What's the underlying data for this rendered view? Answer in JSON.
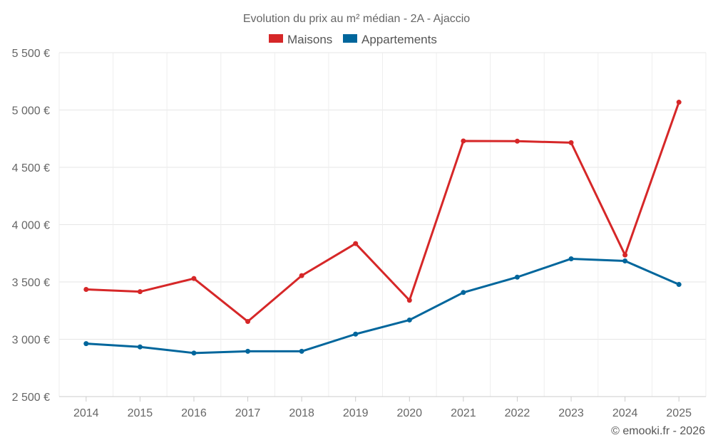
{
  "chart_data": {
    "type": "line",
    "title": "Evolution du prix au m² médian - 2A - Ajaccio",
    "categories": [
      "2014",
      "2015",
      "2016",
      "2017",
      "2018",
      "2019",
      "2020",
      "2021",
      "2022",
      "2023",
      "2024",
      "2025"
    ],
    "series": [
      {
        "name": "Maisons",
        "color": "#d62728",
        "values": [
          3435,
          3415,
          3530,
          3155,
          3555,
          3835,
          3340,
          4730,
          4728,
          4715,
          3735,
          5068
        ]
      },
      {
        "name": "Appartements",
        "color": "#00669c",
        "values": [
          2962,
          2933,
          2880,
          2895,
          2895,
          3045,
          3168,
          3408,
          3542,
          3702,
          3683,
          3478
        ]
      }
    ],
    "ylim": [
      2500,
      5500
    ],
    "yticks": [
      5500,
      5000,
      4500,
      4000,
      3500,
      3000,
      2500
    ],
    "ytick_labels": [
      "5 500 €",
      "5 000 €",
      "4 500 €",
      "4 000 €",
      "3 500 €",
      "3 000 €",
      "2 500 €"
    ],
    "legend_position": "top",
    "grid": true,
    "credit": "© emooki.fr - 2026"
  }
}
